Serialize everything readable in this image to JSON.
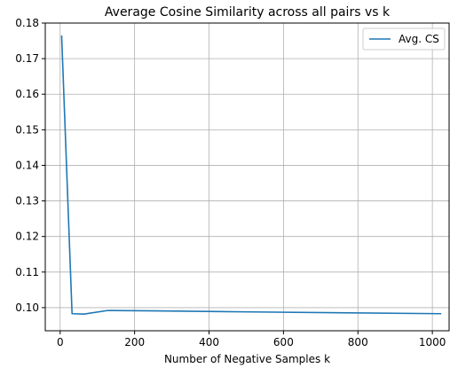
{
  "chart_data": {
    "type": "line",
    "title": "Average Cosine Similarity across all pairs vs k",
    "xlabel": "Number of Negative Samples k",
    "ylabel": "",
    "xlim": [
      -40,
      1045
    ],
    "ylim": [
      0.0935,
      0.18
    ],
    "x_ticks": [
      0,
      200,
      400,
      600,
      800,
      1000
    ],
    "x_tick_labels": [
      "0",
      "200",
      "400",
      "600",
      "800",
      "1000"
    ],
    "y_ticks": [
      0.1,
      0.11,
      0.12,
      0.13,
      0.14,
      0.15,
      0.16,
      0.17,
      0.18
    ],
    "y_tick_labels": [
      "0.10",
      "0.11",
      "0.12",
      "0.13",
      "0.14",
      "0.15",
      "0.16",
      "0.17",
      "0.18"
    ],
    "grid": true,
    "legend_position": "top-right",
    "series": [
      {
        "name": "Avg. CS",
        "color": "#1f77b4",
        "x": [
          4,
          32,
          64,
          128,
          256,
          512,
          1024
        ],
        "y": [
          0.1765,
          0.0983,
          0.0982,
          0.0992,
          0.0991,
          0.0988,
          0.0983
        ]
      }
    ]
  }
}
